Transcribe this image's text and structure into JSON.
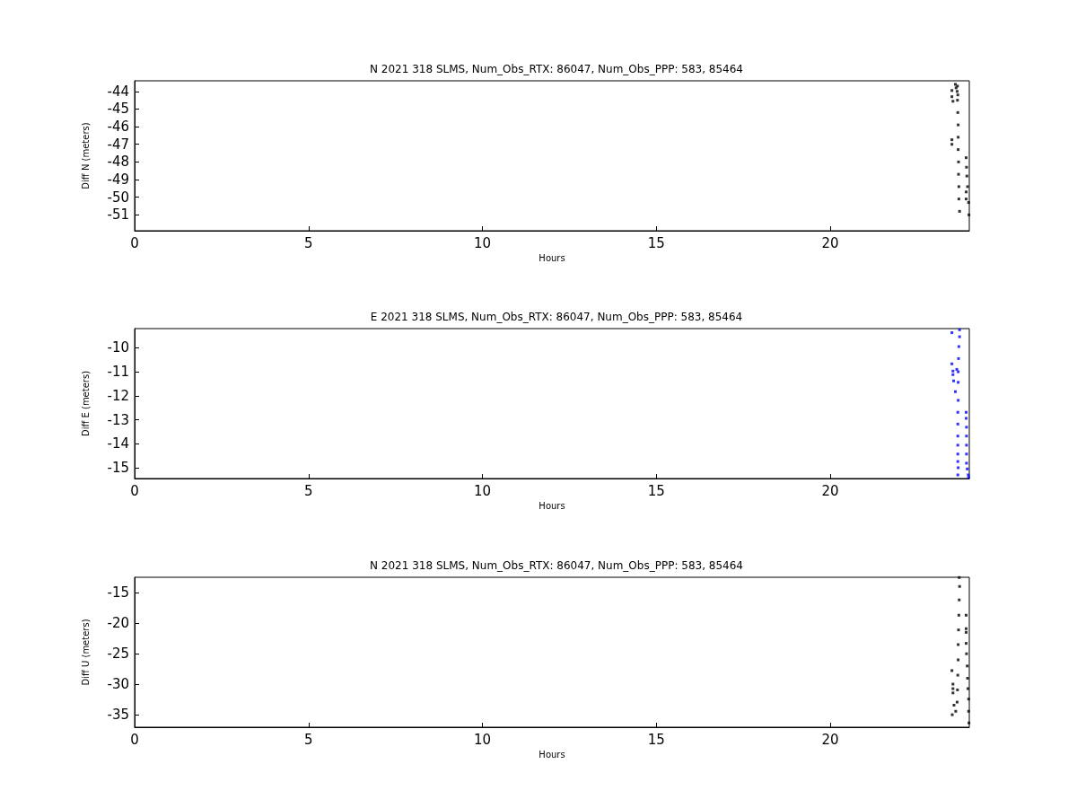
{
  "chart_data": [
    {
      "type": "scatter",
      "title": "N 2021 318 SLMS, Num_Obs_RTX: 86047, Num_Obs_PPP: 583, 85464",
      "xlabel": "Hours",
      "ylabel": "Diff N (meters)",
      "color": "#000000",
      "marker": "square",
      "grid": false,
      "x": [
        23.6,
        23.62,
        23.66,
        23.65,
        23.67,
        23.5,
        23.5,
        23.53,
        23.5,
        23.5,
        23.66,
        23.67,
        23.68,
        23.68,
        23.68,
        23.69,
        23.69,
        23.7,
        23.7,
        23.72,
        23.91,
        23.92,
        23.93,
        23.95,
        23.98,
        23.99,
        23.91,
        23.91
      ],
      "values": [
        -43.6,
        -43.8,
        -43.7,
        -44.0,
        -44.2,
        -43.95,
        -44.3,
        -44.56,
        -46.74,
        -47.0,
        -44.5,
        -45.2,
        -45.9,
        -46.6,
        -47.3,
        -48.0,
        -48.7,
        -49.4,
        -50.1,
        -50.8,
        -47.76,
        -48.3,
        -48.8,
        -49.4,
        -50.3,
        -51.0,
        -49.7,
        -50.1
      ],
      "xlim": [
        0,
        24
      ],
      "xticks": [
        0,
        5,
        10,
        15,
        20
      ],
      "ylim": [
        -51.9,
        -43.4
      ],
      "yticks": [
        -51,
        -50,
        -49,
        -48,
        -47,
        -46,
        -45,
        -44
      ]
    },
    {
      "type": "scatter",
      "title": "E 2021 318 SLMS, Num_Obs_RTX: 86047, Num_Obs_PPP: 583, 85464",
      "xlabel": "Hours",
      "ylabel": "Diff E (meters)",
      "color": "#0000ff",
      "marker": "square",
      "grid": false,
      "x": [
        23.5,
        23.5,
        23.53,
        23.53,
        23.55,
        23.6,
        23.64,
        23.72,
        23.72,
        23.7,
        23.69,
        23.68,
        23.68,
        23.68,
        23.67,
        23.67,
        23.67,
        23.67,
        23.67,
        23.67,
        23.68,
        23.67,
        23.91,
        23.91,
        23.92,
        23.92,
        23.92,
        23.92,
        23.92,
        23.94,
        23.97,
        23.98
      ],
      "values": [
        -9.37,
        -10.67,
        -10.97,
        -11.12,
        -11.38,
        -11.83,
        -10.9,
        -9.25,
        -9.54,
        -9.95,
        -10.45,
        -11.0,
        -11.44,
        -12.19,
        -12.69,
        -13.18,
        -13.68,
        -14.06,
        -14.43,
        -14.74,
        -15.0,
        -15.3,
        -12.69,
        -12.94,
        -13.31,
        -13.68,
        -14.06,
        -14.43,
        -14.81,
        -15.05,
        -15.3,
        -15.41
      ],
      "xlim": [
        0,
        24
      ],
      "xticks": [
        0,
        5,
        10,
        15,
        20
      ],
      "ylim": [
        -15.45,
        -9.2
      ],
      "yticks": [
        -15,
        -14,
        -13,
        -12,
        -11,
        -10
      ]
    },
    {
      "type": "scatter",
      "title": "N 2021 318 SLMS, Num_Obs_RTX: 86047, Num_Obs_PPP: 583, 85464",
      "xlabel": "Hours",
      "ylabel": "Diff U (meters)",
      "color": "#000000",
      "marker": "square",
      "grid": false,
      "x": [
        23.71,
        23.72,
        23.71,
        23.7,
        23.69,
        23.68,
        23.68,
        23.67,
        23.66,
        23.65,
        23.61,
        23.5,
        23.53,
        23.53,
        23.53,
        23.51,
        23.56,
        23.91,
        23.91,
        23.91,
        23.91,
        23.92,
        23.94,
        23.95,
        23.96,
        23.98,
        23.98,
        23.99
      ],
      "values": [
        -12.54,
        -14.0,
        -16.2,
        -18.7,
        -21.1,
        -23.5,
        -26.0,
        -28.5,
        -30.9,
        -32.9,
        -34.4,
        -27.75,
        -29.96,
        -30.7,
        -31.4,
        -34.96,
        -33.4,
        -18.7,
        -20.9,
        -21.5,
        -23.3,
        -25.0,
        -27.0,
        -29.0,
        -30.7,
        -32.4,
        -34.4,
        -36.3
      ],
      "xlim": [
        0,
        24
      ],
      "xticks": [
        0,
        5,
        10,
        15,
        20
      ],
      "ylim": [
        -37,
        -12.5
      ],
      "yticks": [
        -35,
        -30,
        -25,
        -20,
        -15
      ]
    }
  ]
}
